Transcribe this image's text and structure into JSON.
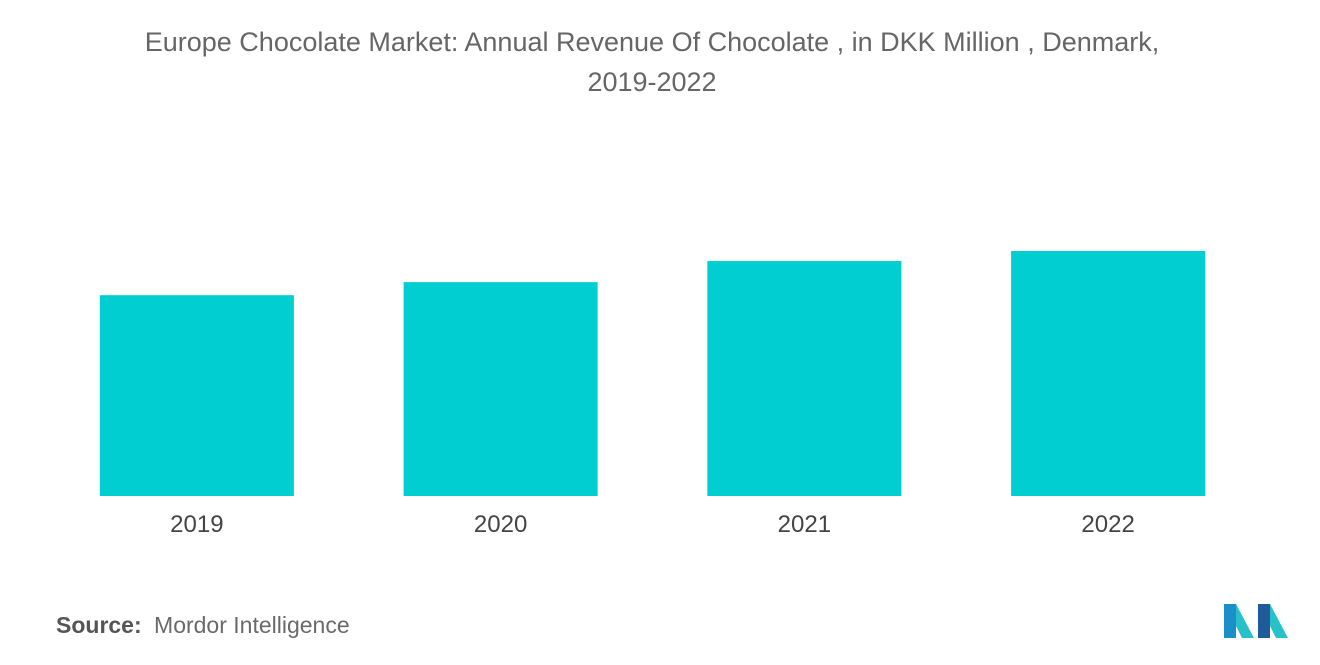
{
  "chart_data": {
    "type": "bar",
    "title_line1": "Europe Chocolate Market: Annual Revenue Of Chocolate , in DKK Million , Denmark,",
    "title_line2": "2019-2022",
    "categories": [
      "2019",
      "2020",
      "2021",
      "2022"
    ],
    "values": [
      100,
      106.5,
      117,
      122
    ],
    "ylim": [
      0,
      122
    ],
    "xlabel": "",
    "ylabel": "",
    "grid": false,
    "legend": "none",
    "bar_color": "#00CED1",
    "axis_label_color": "#444444"
  },
  "source": {
    "label": "Source:",
    "value": "Mordor Intelligence"
  },
  "logo": {
    "name": "mordor-intelligence-logo",
    "colors": [
      "#1B8FC7",
      "#29C1C9",
      "#1F5A9A"
    ]
  }
}
